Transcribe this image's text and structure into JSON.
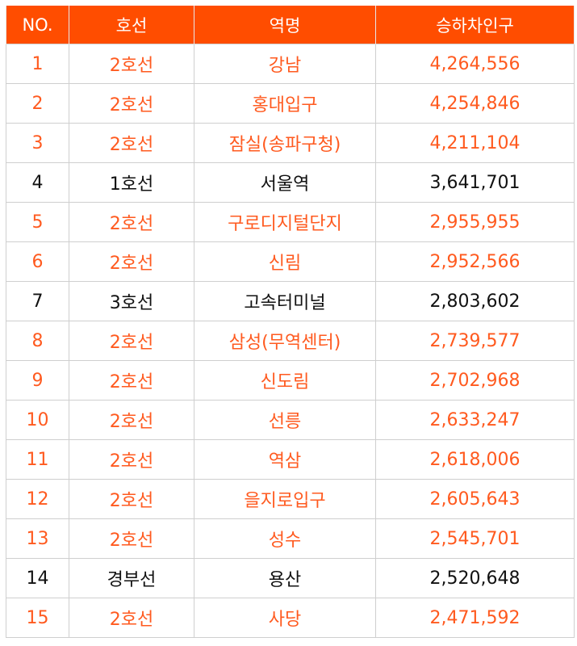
{
  "table": {
    "headers": [
      "NO.",
      "호선",
      "역명",
      "승하차인구"
    ],
    "rows": [
      {
        "no": "1",
        "line": "2호선",
        "station": "강남",
        "count": "4,264,556",
        "highlight": true
      },
      {
        "no": "2",
        "line": "2호선",
        "station": "홍대입구",
        "count": "4,254,846",
        "highlight": true
      },
      {
        "no": "3",
        "line": "2호선",
        "station": "잠실(송파구청)",
        "count": "4,211,104",
        "highlight": true
      },
      {
        "no": "4",
        "line": "1호선",
        "station": "서울역",
        "count": "3,641,701",
        "highlight": false
      },
      {
        "no": "5",
        "line": "2호선",
        "station": "구로디지털단지",
        "count": "2,955,955",
        "highlight": true
      },
      {
        "no": "6",
        "line": "2호선",
        "station": "신림",
        "count": "2,952,566",
        "highlight": true
      },
      {
        "no": "7",
        "line": "3호선",
        "station": "고속터미널",
        "count": "2,803,602",
        "highlight": false
      },
      {
        "no": "8",
        "line": "2호선",
        "station": "삼성(무역센터)",
        "count": "2,739,577",
        "highlight": true
      },
      {
        "no": "9",
        "line": "2호선",
        "station": "신도림",
        "count": "2,702,968",
        "highlight": true
      },
      {
        "no": "10",
        "line": "2호선",
        "station": "선릉",
        "count": "2,633,247",
        "highlight": true
      },
      {
        "no": "11",
        "line": "2호선",
        "station": "역삼",
        "count": "2,618,006",
        "highlight": true
      },
      {
        "no": "12",
        "line": "2호선",
        "station": "을지로입구",
        "count": "2,605,643",
        "highlight": true
      },
      {
        "no": "13",
        "line": "2호선",
        "station": "성수",
        "count": "2,545,701",
        "highlight": true
      },
      {
        "no": "14",
        "line": "경부선",
        "station": "용산",
        "count": "2,520,648",
        "highlight": false
      },
      {
        "no": "15",
        "line": "2호선",
        "station": "사당",
        "count": "2,471,592",
        "highlight": true
      }
    ]
  },
  "colors": {
    "header_bg": "#ff4d00",
    "header_text": "#ffffff",
    "highlight_text": "#ff5a1f",
    "normal_text": "#111111",
    "border": "#cfcfcf"
  }
}
